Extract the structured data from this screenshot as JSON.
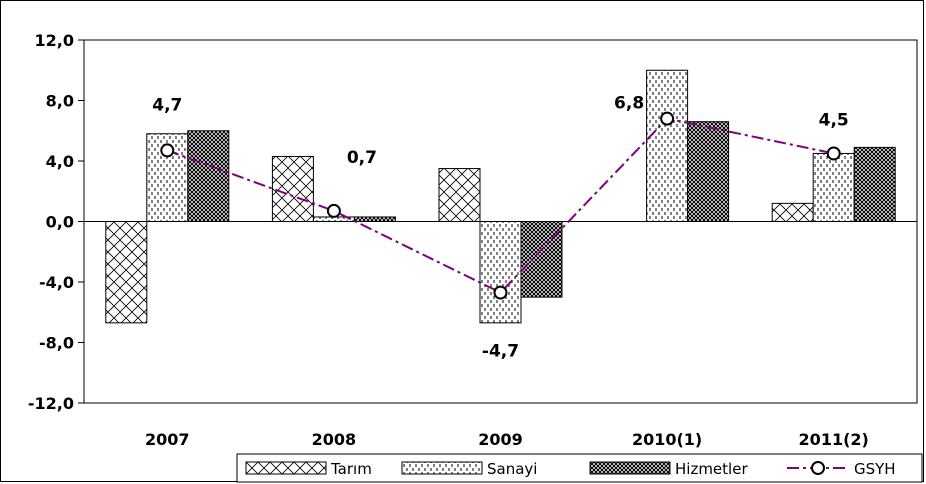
{
  "chart_data": {
    "type": "bar",
    "categories": [
      "2007",
      "2008",
      "2009",
      "2010(1)",
      "2011(2)"
    ],
    "series": [
      {
        "name": "Tarım",
        "type": "bar",
        "pattern": "cross-hatch",
        "values": [
          -6.7,
          4.3,
          3.5,
          0.0,
          1.2
        ]
      },
      {
        "name": "Sanayi",
        "type": "bar",
        "pattern": "vertical-dashes",
        "values": [
          5.8,
          0.3,
          -6.7,
          10.0,
          4.5
        ]
      },
      {
        "name": "Hizmetler",
        "type": "bar",
        "pattern": "dense-grid",
        "values": [
          6.0,
          0.3,
          -5.0,
          6.6,
          4.9
        ]
      },
      {
        "name": "GSYH",
        "type": "line",
        "style": "dash-dot",
        "marker": "circle-open",
        "color": "#800080",
        "values": [
          4.7,
          0.7,
          -4.7,
          6.8,
          4.5
        ]
      }
    ],
    "data_labels": [
      "4,7",
      "0,7",
      "-4,7",
      "6,8",
      "4,5"
    ],
    "ylim": [
      -12.0,
      12.0
    ],
    "yticks": [
      "12,0",
      "8,0",
      "4,0",
      "0,0",
      "-4,0",
      "-8,0",
      "-12,0"
    ],
    "ytick_values": [
      12,
      8,
      4,
      0,
      -4,
      -8,
      -12
    ],
    "legend_position": "bottom-right",
    "grid": false
  }
}
